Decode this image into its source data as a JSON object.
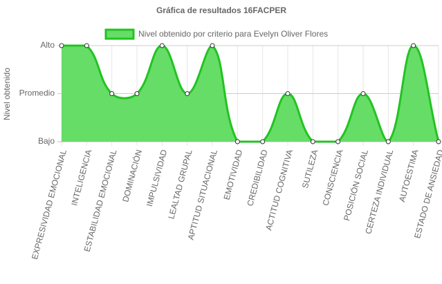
{
  "chart_data": {
    "type": "area",
    "title": "Gráfica de resultados 16FACPER",
    "y_label": "Nivel obtenido",
    "categories": [
      "EXPRESIVIDAD EMOCIONAL",
      "INTELIGENCIA",
      "ESTABILIDAD EMOCIONAL",
      "DOMINACIÓN",
      "IMPULSIVIDAD",
      "LEALTAD GRUPAL",
      "APTITUD SITUACIONAL",
      "EMOTIVIDAD",
      "CREDIBILIDAD",
      "ACTITUD COGNITIVA",
      "SUTILEZA",
      "CONSCIENCIA",
      "POSICIÓN SOCIAL",
      "CERTEZA INDIVIDUAL",
      "AUTOESTIMA",
      "ESTADO DE ANSIEDAD"
    ],
    "series": [
      {
        "name": "Nivel obtenido por criterio para Evelyn Oliver Flores",
        "color": "#22c322",
        "fill": "#66dd66",
        "values": [
          2,
          2,
          1,
          1,
          2,
          1,
          2,
          0,
          0,
          1,
          0,
          0,
          1,
          0,
          2,
          0
        ]
      }
    ],
    "ylim": [
      0,
      2
    ],
    "yticks": [
      {
        "value": 0,
        "label": "Bajo"
      },
      {
        "value": 1,
        "label": "Promedio"
      },
      {
        "value": 2,
        "label": "Alto"
      }
    ],
    "grid": true,
    "legend": "top"
  }
}
